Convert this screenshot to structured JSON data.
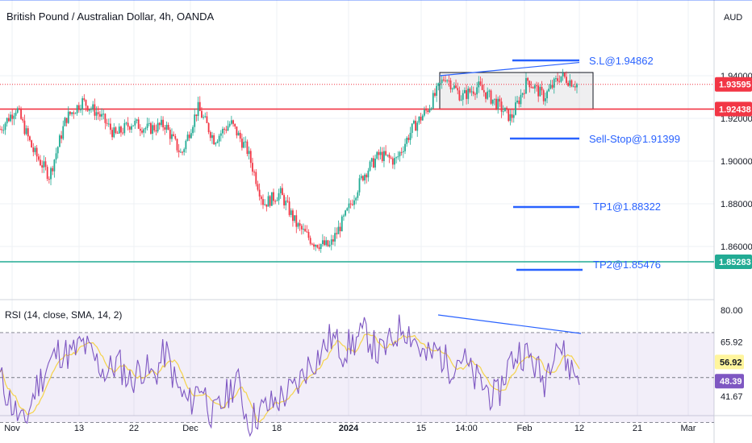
{
  "header": {
    "title": "British Pound / Australian Dollar, 4h, OANDA",
    "currency": "AUD"
  },
  "price_axis": {
    "ticks": [
      {
        "label": "1.94000",
        "value": 1.94
      },
      {
        "label": "1.92000",
        "value": 1.92
      },
      {
        "label": "1.90000",
        "value": 1.9
      },
      {
        "label": "1.88000",
        "value": 1.88
      },
      {
        "label": "1.86000",
        "value": 1.86
      }
    ],
    "badges": [
      {
        "label": "1.93595",
        "value": 1.93595,
        "color": "#f23645"
      },
      {
        "label": "1.92438",
        "value": 1.92438,
        "color": "#f23645"
      },
      {
        "label": "1.85283",
        "value": 1.85283,
        "color": "#22ab94"
      }
    ]
  },
  "annotations": [
    {
      "text": "S.L@1.94862",
      "color": "#2962ff"
    },
    {
      "text": "Sell-Stop@1.91399",
      "color": "#2962ff"
    },
    {
      "text": "TP1@1.88322",
      "color": "#2962ff"
    },
    {
      "text": "TP2@1.85476",
      "color": "#2962ff"
    }
  ],
  "rsi_panel": {
    "title": "RSI (14, close, SMA, 14, 2)",
    "ticks": [
      {
        "label": "80.00",
        "value": 80
      },
      {
        "label": "65.92",
        "value": 65.92
      },
      {
        "label": "41.67",
        "value": 41.67
      }
    ],
    "badges": [
      {
        "label": "56.92",
        "value": 56.92,
        "color": "#fff59d",
        "text_color": "#131722"
      },
      {
        "label": "48.39",
        "value": 48.39,
        "color": "#7e57c2",
        "text_color": "#ffffff"
      }
    ]
  },
  "time_axis": {
    "labels": [
      {
        "label": "Nov",
        "bold": false
      },
      {
        "label": "13",
        "bold": false
      },
      {
        "label": "22",
        "bold": false
      },
      {
        "label": "Dec",
        "bold": false
      },
      {
        "label": "18",
        "bold": false
      },
      {
        "label": "2024",
        "bold": true
      },
      {
        "label": "15",
        "bold": false
      },
      {
        "label": "14:00",
        "bold": false
      },
      {
        "label": "Feb",
        "bold": false
      },
      {
        "label": "12",
        "bold": false
      },
      {
        "label": "21",
        "bold": false
      },
      {
        "label": "Mar",
        "bold": false
      }
    ]
  },
  "chart_data": {
    "type": "candlestick",
    "symbol": "GBPAUD",
    "timeframe": "4h",
    "price_lines": [
      {
        "value": 1.93595,
        "style": "dotted",
        "color": "#f23645"
      },
      {
        "value": 1.92438,
        "style": "solid",
        "color": "#f23645"
      },
      {
        "value": 1.85283,
        "style": "solid",
        "color": "#22ab94"
      }
    ],
    "close_path": [
      {
        "x": "Nov",
        "y": 1.915
      },
      {
        "x": "Nov",
        "y": 1.925
      },
      {
        "x": "Nov",
        "y": 1.905
      },
      {
        "x": "Nov",
        "y": 1.893
      },
      {
        "x": "13",
        "y": 1.92
      },
      {
        "x": "13",
        "y": 1.928
      },
      {
        "x": "13",
        "y": 1.922
      },
      {
        "x": "22",
        "y": 1.912
      },
      {
        "x": "22",
        "y": 1.918
      },
      {
        "x": "22",
        "y": 1.915
      },
      {
        "x": "Dec",
        "y": 1.917
      },
      {
        "x": "Dec",
        "y": 1.903
      },
      {
        "x": "Dec",
        "y": 1.925
      },
      {
        "x": "Dec",
        "y": 1.91
      },
      {
        "x": "Dec",
        "y": 1.918
      },
      {
        "x": "Dec",
        "y": 1.905
      },
      {
        "x": "18",
        "y": 1.88
      },
      {
        "x": "18",
        "y": 1.885
      },
      {
        "x": "18",
        "y": 1.87
      },
      {
        "x": "18",
        "y": 1.862
      },
      {
        "x": "2024",
        "y": 1.86
      },
      {
        "x": "2024",
        "y": 1.875
      },
      {
        "x": "2024",
        "y": 1.893
      },
      {
        "x": "15",
        "y": 1.903
      },
      {
        "x": "15",
        "y": 1.9
      },
      {
        "x": "15",
        "y": 1.915
      },
      {
        "x": "15",
        "y": 1.925
      },
      {
        "x": "15",
        "y": 1.94
      },
      {
        "x": "14:00",
        "y": 1.93
      },
      {
        "x": "14:00",
        "y": 1.935
      },
      {
        "x": "14:00",
        "y": 1.928
      },
      {
        "x": "Feb",
        "y": 1.92
      },
      {
        "x": "Feb",
        "y": 1.938
      },
      {
        "x": "Feb",
        "y": 1.93
      },
      {
        "x": "12",
        "y": 1.94
      },
      {
        "x": "12",
        "y": 1.936
      }
    ],
    "rectangle": {
      "top": 1.9415,
      "bottom": 1.9243
    },
    "trendline_price": [
      1.94,
      1.9462
    ],
    "rsi": {
      "bands": {
        "upper": 70,
        "middle": 50,
        "lower": 30
      },
      "values": [
        50,
        38,
        28,
        45,
        55,
        62,
        60,
        65,
        58,
        52,
        57,
        48,
        55,
        50,
        62,
        45,
        38,
        48,
        32,
        40,
        50,
        30,
        35,
        38,
        42,
        45,
        55,
        60,
        68,
        62,
        66,
        70,
        60,
        65,
        74,
        68,
        58,
        62,
        55,
        60,
        50,
        46,
        40,
        56,
        62,
        58,
        48,
        68,
        56,
        50
      ]
    }
  }
}
